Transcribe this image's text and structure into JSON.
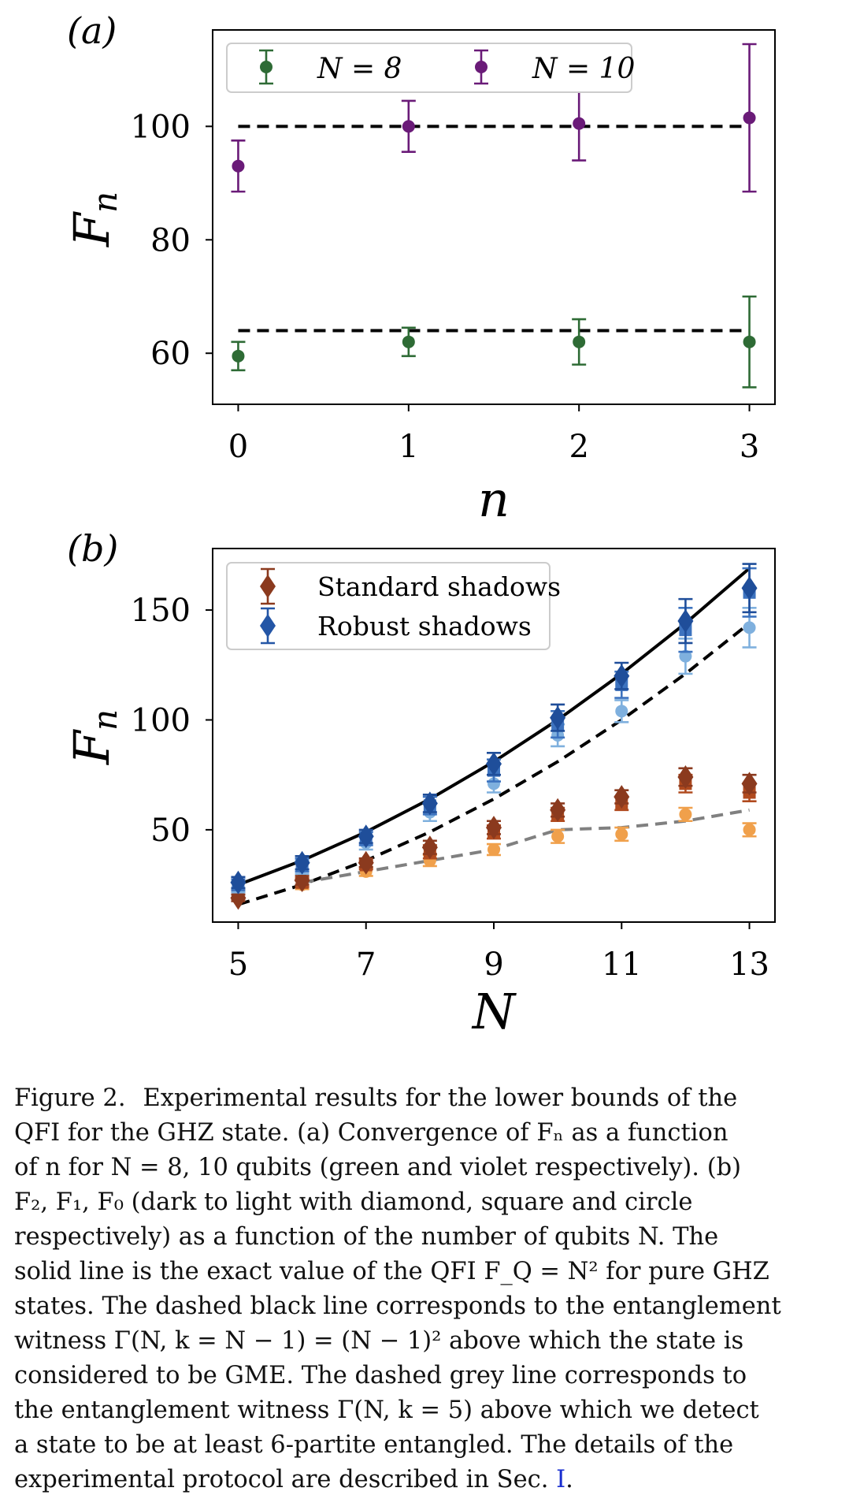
{
  "chart_data": [
    {
      "panel_label": "(a)",
      "type": "scatter",
      "xlabel": "n",
      "ylabel": "F_n",
      "xlim": [
        -0.15,
        3.15
      ],
      "ylim": [
        51,
        117
      ],
      "xticks": [
        "0",
        "1",
        "2",
        "3"
      ],
      "yticks": [
        "60",
        "80",
        "100"
      ],
      "grid": false,
      "legend_placement": "top-left",
      "series": [
        {
          "name": "N = 8",
          "color": "#2e6b35",
          "marker": "circle",
          "x": [
            0,
            1,
            2,
            3
          ],
          "y": [
            59.5,
            62,
            62,
            62
          ],
          "err": [
            2.5,
            2.5,
            4,
            8
          ]
        },
        {
          "name": "N = 10",
          "color": "#6a1b78",
          "marker": "circle",
          "x": [
            0,
            1,
            2,
            3
          ],
          "y": [
            93,
            100,
            100.5,
            101.5
          ],
          "err": [
            4.5,
            4.5,
            6.5,
            13
          ]
        }
      ],
      "reference_lines": [
        {
          "style": "dashed",
          "color": "#000000",
          "y": 64
        },
        {
          "style": "dashed",
          "color": "#000000",
          "y": 100
        }
      ]
    },
    {
      "panel_label": "(b)",
      "type": "scatter",
      "xlabel": "N",
      "ylabel": "F_n",
      "xlim": [
        4.6,
        13.4
      ],
      "ylim": [
        8,
        178
      ],
      "xticks": [
        "5",
        "7",
        "9",
        "11",
        "13"
      ],
      "yticks": [
        "50",
        "100",
        "150"
      ],
      "grid": false,
      "legend_placement": "top-left",
      "legend_entries": [
        {
          "label": "Standard shadows",
          "color": "#8b3a1e"
        },
        {
          "label": "Robust shadows",
          "color": "#2456a6"
        }
      ],
      "x": [
        5,
        6,
        7,
        8,
        9,
        10,
        11,
        12,
        13
      ],
      "series": [
        {
          "color": "#8b3a1e",
          "marker": "diamond",
          "y": [
            19,
            27,
            35,
            42,
            51,
            59,
            65,
            74,
            71
          ],
          "err": [
            1.5,
            2,
            2,
            3,
            3,
            3,
            3,
            4,
            4
          ]
        },
        {
          "color": "#b04a1e",
          "marker": "square",
          "y": [
            20,
            26,
            34,
            40,
            49,
            57,
            62,
            71,
            67
          ],
          "err": [
            1.5,
            2,
            2,
            3,
            3,
            3,
            3,
            4,
            4
          ]
        },
        {
          "color": "#f0a04b",
          "marker": "circle",
          "y": [
            21,
            25,
            31,
            36,
            41,
            47,
            48,
            57,
            50
          ],
          "err": [
            2,
            2,
            2,
            2.5,
            2.5,
            3,
            3,
            3,
            3
          ]
        },
        {
          "color": "#1f4e9a",
          "marker": "diamond",
          "y": [
            26,
            35,
            47,
            62,
            80,
            101,
            120,
            145,
            160
          ],
          "err": [
            2.5,
            3,
            3,
            4,
            5,
            6,
            6,
            10,
            11
          ]
        },
        {
          "color": "#3d73bf",
          "marker": "square",
          "y": [
            25,
            34,
            46,
            61,
            77,
            98,
            116,
            141,
            158
          ],
          "err": [
            2.5,
            3,
            3,
            4,
            5,
            6,
            6,
            10,
            11
          ]
        },
        {
          "color": "#7fb0de",
          "marker": "circle",
          "y": [
            24,
            33,
            44,
            58,
            71,
            93,
            104,
            129,
            142
          ],
          "err": [
            2.5,
            3,
            3,
            4,
            4,
            5,
            5,
            8,
            9
          ]
        }
      ],
      "curves": [
        {
          "description": "F_Q = N^2",
          "style": "solid",
          "color": "#000000",
          "x": [
            5,
            6,
            7,
            8,
            9,
            10,
            11,
            12,
            13
          ],
          "y": [
            25,
            36,
            49,
            64,
            81,
            100,
            121,
            144,
            169
          ]
        },
        {
          "description": "(N-1)^2",
          "style": "dashed",
          "color": "#000000",
          "x": [
            5,
            6,
            7,
            8,
            9,
            10,
            11,
            12,
            13
          ],
          "y": [
            16,
            25,
            36,
            49,
            64,
            81,
            100,
            121,
            144
          ]
        },
        {
          "description": "Gamma(N, k=5)",
          "style": "dashed",
          "color": "#808080",
          "x": [
            6,
            7,
            8,
            9,
            10,
            11,
            12,
            13
          ],
          "y": [
            26,
            31,
            36,
            41,
            50,
            51,
            54,
            59
          ]
        }
      ]
    }
  ],
  "caption": {
    "lines": [
      [
        "Figure 2.",
        "Experimental results for the lower bounds of the"
      ],
      "QFI for the GHZ state. (a) Convergence of Fₙ as a function",
      "of n for N = 8, 10 qubits (green and violet respectively). (b)",
      "F₂, F₁, F₀ (dark to light with diamond, square and circle",
      "respectively) as a function of the number of qubits N. The",
      "solid line is the exact value of the QFI F_Q = N² for pure GHZ",
      "states. The dashed black line corresponds to the entanglement",
      "witness Γ(N, k = N − 1) = (N − 1)² above which the state is",
      "considered to be GME. The dashed grey line corresponds to",
      "the entanglement witness Γ(N, k = 5) above which we detect",
      "a state to be at least 6-partite entangled. The details of the",
      [
        "experimental protocol are described in Sec. ",
        "I",
        "."
      ]
    ]
  }
}
